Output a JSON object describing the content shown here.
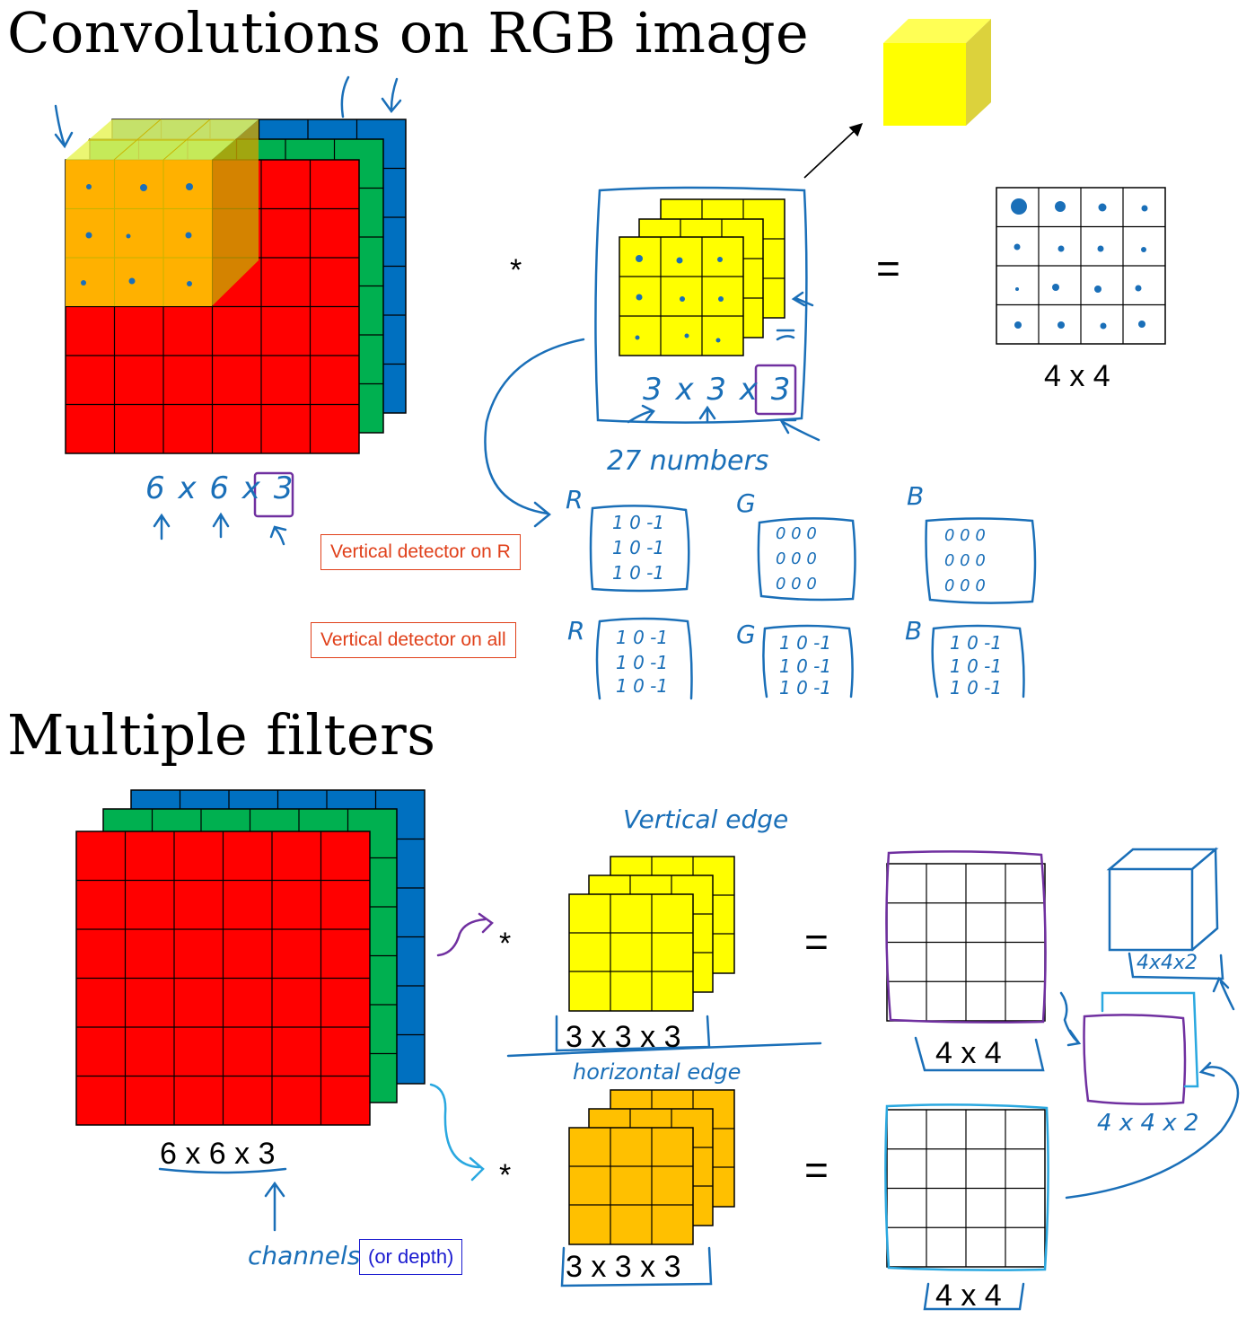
{
  "top": {
    "title": "Convolutions on RGB image",
    "op_convolve": "*",
    "op_equals": "=",
    "output_label": "4 x 4",
    "input_dims_handwritten": "6 x 6 x 3",
    "filter_dims_handwritten": "3 x 3 x 3",
    "numbers_note": "27 numbers",
    "channel_R": "R",
    "channel_G": "G",
    "channel_B": "B",
    "note_vertical_R": "Vertical detector on R",
    "note_vertical_all": "Vertical detector on all",
    "filter_R_on_R": [
      "1  0  -1",
      "1  0  -1",
      "1  0  -1"
    ],
    "filter_G_on_R": [
      "0  0  0",
      "0  0  0",
      "0  0  0"
    ],
    "filter_B_on_R": [
      "0  0  0",
      "0  0  0",
      "0  0  0"
    ],
    "filter_all": [
      "1  0  -1",
      "1  0  -1",
      "1  0  -1"
    ]
  },
  "bottom": {
    "title": "Multiple filters",
    "op_convolve": "*",
    "op_equals": "=",
    "input_label": "6 x 6 x 3",
    "filter1_label": "3 x 3 x 3",
    "filter2_label": "3 x 3 x 3",
    "output1_label": "4 x 4",
    "output2_label": "4 x 4",
    "note_vertical": "Vertical edge",
    "note_horizontal": "horizontal edge",
    "stacked_label_1": "4x4x2",
    "stacked_label_2": "4 x 4 x 2",
    "channels_note": "channels",
    "depth_note": "(or depth)"
  },
  "colors": {
    "red": "#ff0000",
    "green": "#00b050",
    "blue": "#0070c0",
    "yellow": "#ffff00",
    "orange": "#ffc000",
    "ink_blue": "#1a6fb8",
    "ink_purple": "#7030a0",
    "ink_cyan": "#2aa8e0"
  }
}
